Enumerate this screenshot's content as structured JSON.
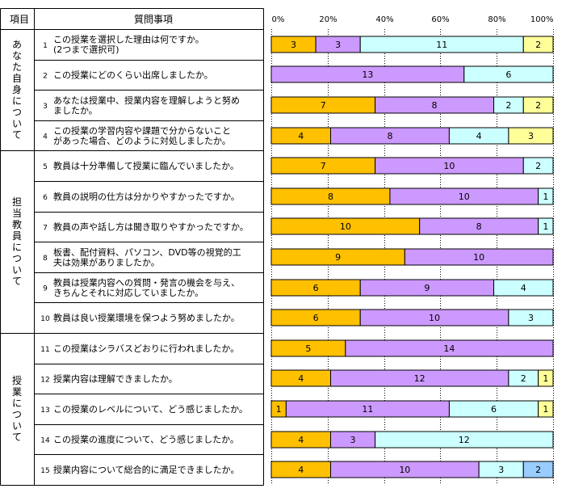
{
  "headers": {
    "category": "項目",
    "question": "質問事項"
  },
  "categories": [
    {
      "label": "あなた自身について",
      "rows": [
        0,
        3
      ]
    },
    {
      "label": "担当教員について",
      "rows": [
        4,
        9
      ]
    },
    {
      "label": "授業について",
      "rows": [
        10,
        14
      ]
    }
  ],
  "questions": [
    {
      "num": "1",
      "lines": [
        "この授業を選択した理由は何ですか。",
        "(2つまで選択可)"
      ]
    },
    {
      "num": "2",
      "lines": [
        "この授業にどのくらい出席しましたか。"
      ]
    },
    {
      "num": "3",
      "lines": [
        "あなたは授業中、授業内容を理解しようと努め",
        "ましたか。"
      ]
    },
    {
      "num": "4",
      "lines": [
        "この授業の学習内容や課題で分からないこと",
        "があった場合、どのように対処しましたか。"
      ]
    },
    {
      "num": "5",
      "lines": [
        "教員は十分準備して授業に臨んでいましたか。"
      ]
    },
    {
      "num": "6",
      "lines": [
        "教員の説明の仕方は分かりやすかったですか。"
      ]
    },
    {
      "num": "7",
      "lines": [
        "教員の声や話し方は聞き取りやすかったですか。"
      ]
    },
    {
      "num": "8",
      "lines": [
        "板書、配付資料、パソコン、DVD等の視覚的工",
        "夫は効果がありましたか。"
      ]
    },
    {
      "num": "9",
      "lines": [
        "教員は授業内容への質問・発言の機会を与え、",
        "きちんとそれに対応していましたか。"
      ]
    },
    {
      "num": "10",
      "lines": [
        "教員は良い授業環境を保つよう努めましたか。"
      ]
    },
    {
      "num": "11",
      "lines": [
        "この授業はシラバスどおりに行われましたか。"
      ]
    },
    {
      "num": "12",
      "lines": [
        "授業内容は理解できましたか。"
      ]
    },
    {
      "num": "13",
      "lines": [
        "この授業のレベルについて、どう感じましたか。"
      ]
    },
    {
      "num": "14",
      "lines": [
        "この授業の進度について、どう感じましたか。"
      ]
    },
    {
      "num": "15",
      "lines": [
        "授業内容について総合的に満足できましたか。"
      ]
    }
  ],
  "colors": {
    "series": [
      "#FFC000",
      "#CC99FF",
      "#CCFFFF",
      "#FFFF99",
      "#99CCFF"
    ],
    "grid": "#000000",
    "border": "#000000"
  },
  "chart_data": {
    "type": "bar",
    "orientation": "horizontal",
    "stacked": "percent",
    "xlim": [
      0,
      100
    ],
    "ticks": [
      "0%",
      "20%",
      "40%",
      "60%",
      "80%",
      "100%"
    ],
    "categories": [
      "1",
      "2",
      "3",
      "4",
      "5",
      "6",
      "7",
      "8",
      "9",
      "10",
      "11",
      "12",
      "13",
      "14",
      "15"
    ],
    "rows": [
      [
        3,
        3,
        11,
        2,
        0
      ],
      [
        0,
        13,
        6,
        0,
        0
      ],
      [
        7,
        8,
        2,
        2,
        0
      ],
      [
        4,
        8,
        4,
        3,
        0
      ],
      [
        7,
        10,
        2,
        0,
        0
      ],
      [
        8,
        10,
        1,
        0,
        0
      ],
      [
        10,
        8,
        1,
        0,
        0
      ],
      [
        9,
        10,
        0,
        0,
        0
      ],
      [
        6,
        9,
        4,
        0,
        0
      ],
      [
        6,
        10,
        3,
        0,
        0
      ],
      [
        5,
        14,
        0,
        0,
        0
      ],
      [
        4,
        12,
        2,
        1,
        0
      ],
      [
        1,
        11,
        6,
        1,
        0
      ],
      [
        4,
        3,
        12,
        0,
        0
      ],
      [
        4,
        10,
        3,
        0,
        2
      ]
    ]
  }
}
